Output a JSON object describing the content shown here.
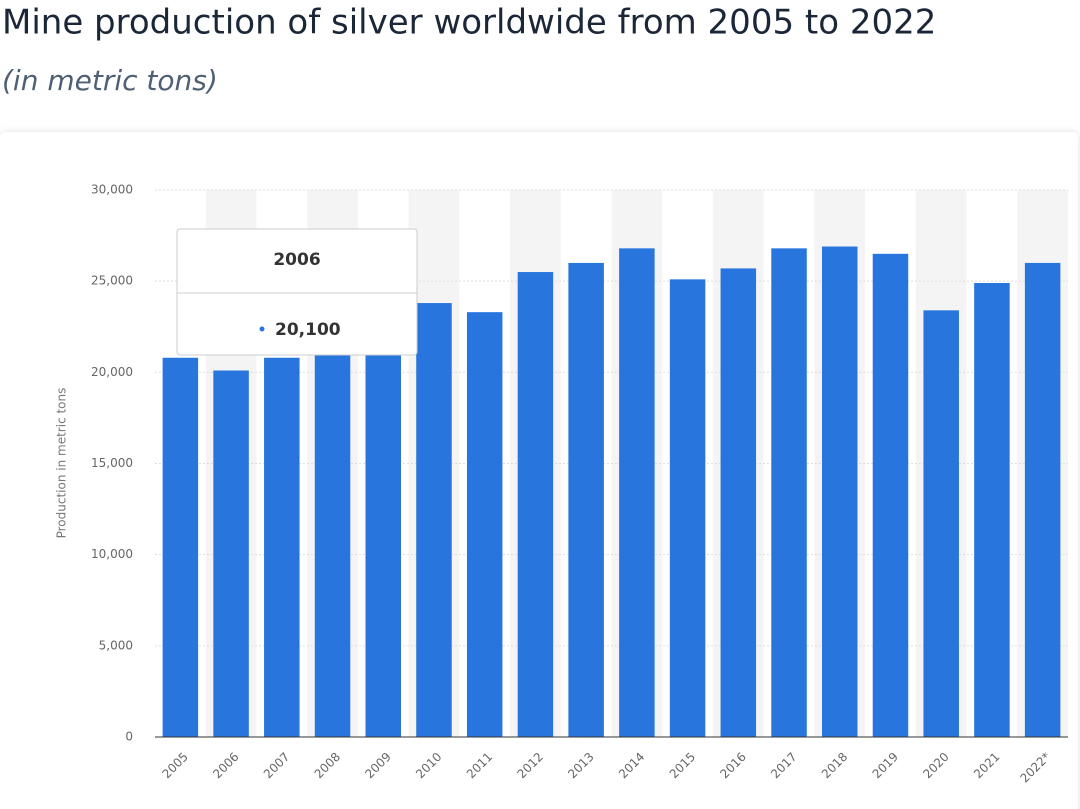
{
  "chart_data": {
    "type": "bar",
    "title": "Mine production of silver worldwide from 2005 to 2022",
    "subtitle": "(in metric tons)",
    "y_label": "Production in metric tons",
    "categories": [
      "2005",
      "2006",
      "2007",
      "2008",
      "2009",
      "2010",
      "2011",
      "2012",
      "2013",
      "2014",
      "2015",
      "2016",
      "2017",
      "2018",
      "2019",
      "2020",
      "2021",
      "2022*"
    ],
    "values": [
      20800,
      20100,
      20800,
      21300,
      22200,
      23800,
      23300,
      25500,
      26000,
      26800,
      25100,
      25700,
      26800,
      26900,
      26500,
      23400,
      24900,
      26000
    ],
    "color": "#2876dd",
    "ylim": [
      0,
      30000
    ],
    "yticks": [
      0,
      {
        "value": 5000,
        "label": "5,000"
      },
      {
        "value": 10000,
        "label": "10,000"
      },
      {
        "value": 15000,
        "label": "15,000"
      },
      {
        "value": 20000,
        "label": "20,000"
      },
      {
        "value": 25000,
        "label": "25,000"
      },
      {
        "value": 30000,
        "label": "30,000"
      }
    ],
    "grid": true,
    "tooltip": {
      "category": "2006",
      "value": "20,100"
    }
  }
}
